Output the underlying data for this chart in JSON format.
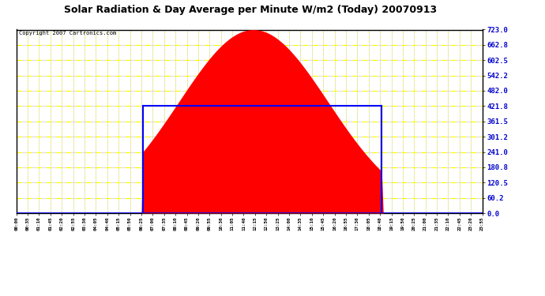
{
  "title": "Solar Radiation & Day Average per Minute W/m2 (Today) 20070913",
  "copyright": "Copyright 2007 Cartronics.com",
  "y_ticks": [
    0.0,
    60.2,
    120.5,
    180.8,
    241.0,
    301.2,
    361.5,
    421.8,
    482.0,
    542.2,
    602.5,
    662.8,
    723.0
  ],
  "y_max": 723.0,
  "bg_color": "#ffffff",
  "fill_color": "#ff0000",
  "avg_line_color": "#0000ff",
  "title_color": "#000000",
  "solar_peak": 723.0,
  "day_avg": 421.8,
  "sunrise_min": 390,
  "sunset_min": 1125,
  "peak_min": 733,
  "total_minutes": 1440,
  "interval_min": 5,
  "label_every": 7,
  "label_interval_min": 35
}
